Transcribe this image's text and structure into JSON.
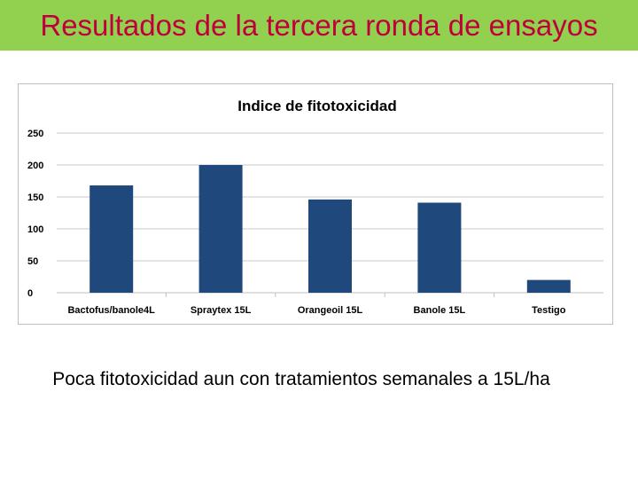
{
  "slide": {
    "title": "Resultados de la tercera ronda de ensayos",
    "title_color": "#c0003a",
    "title_bar_color": "#92d050",
    "caption": "Poca fitotoxicidad aun con tratamientos semanales a 15L/ha"
  },
  "chart_data": {
    "type": "bar",
    "title": "Indice de fitotoxicidad",
    "xlabel": "",
    "ylabel": "",
    "categories": [
      "Bactofus/banole4L",
      "Spraytex 15L",
      "Orangeoil 15L",
      "Banole 15L",
      "Testigo"
    ],
    "values": [
      168,
      200,
      146,
      141,
      20
    ],
    "ylim": [
      0,
      250
    ],
    "yticks": [
      0,
      50,
      100,
      150,
      200,
      250
    ],
    "grid": true,
    "legend": "none",
    "bar_color": "#1f497d"
  }
}
